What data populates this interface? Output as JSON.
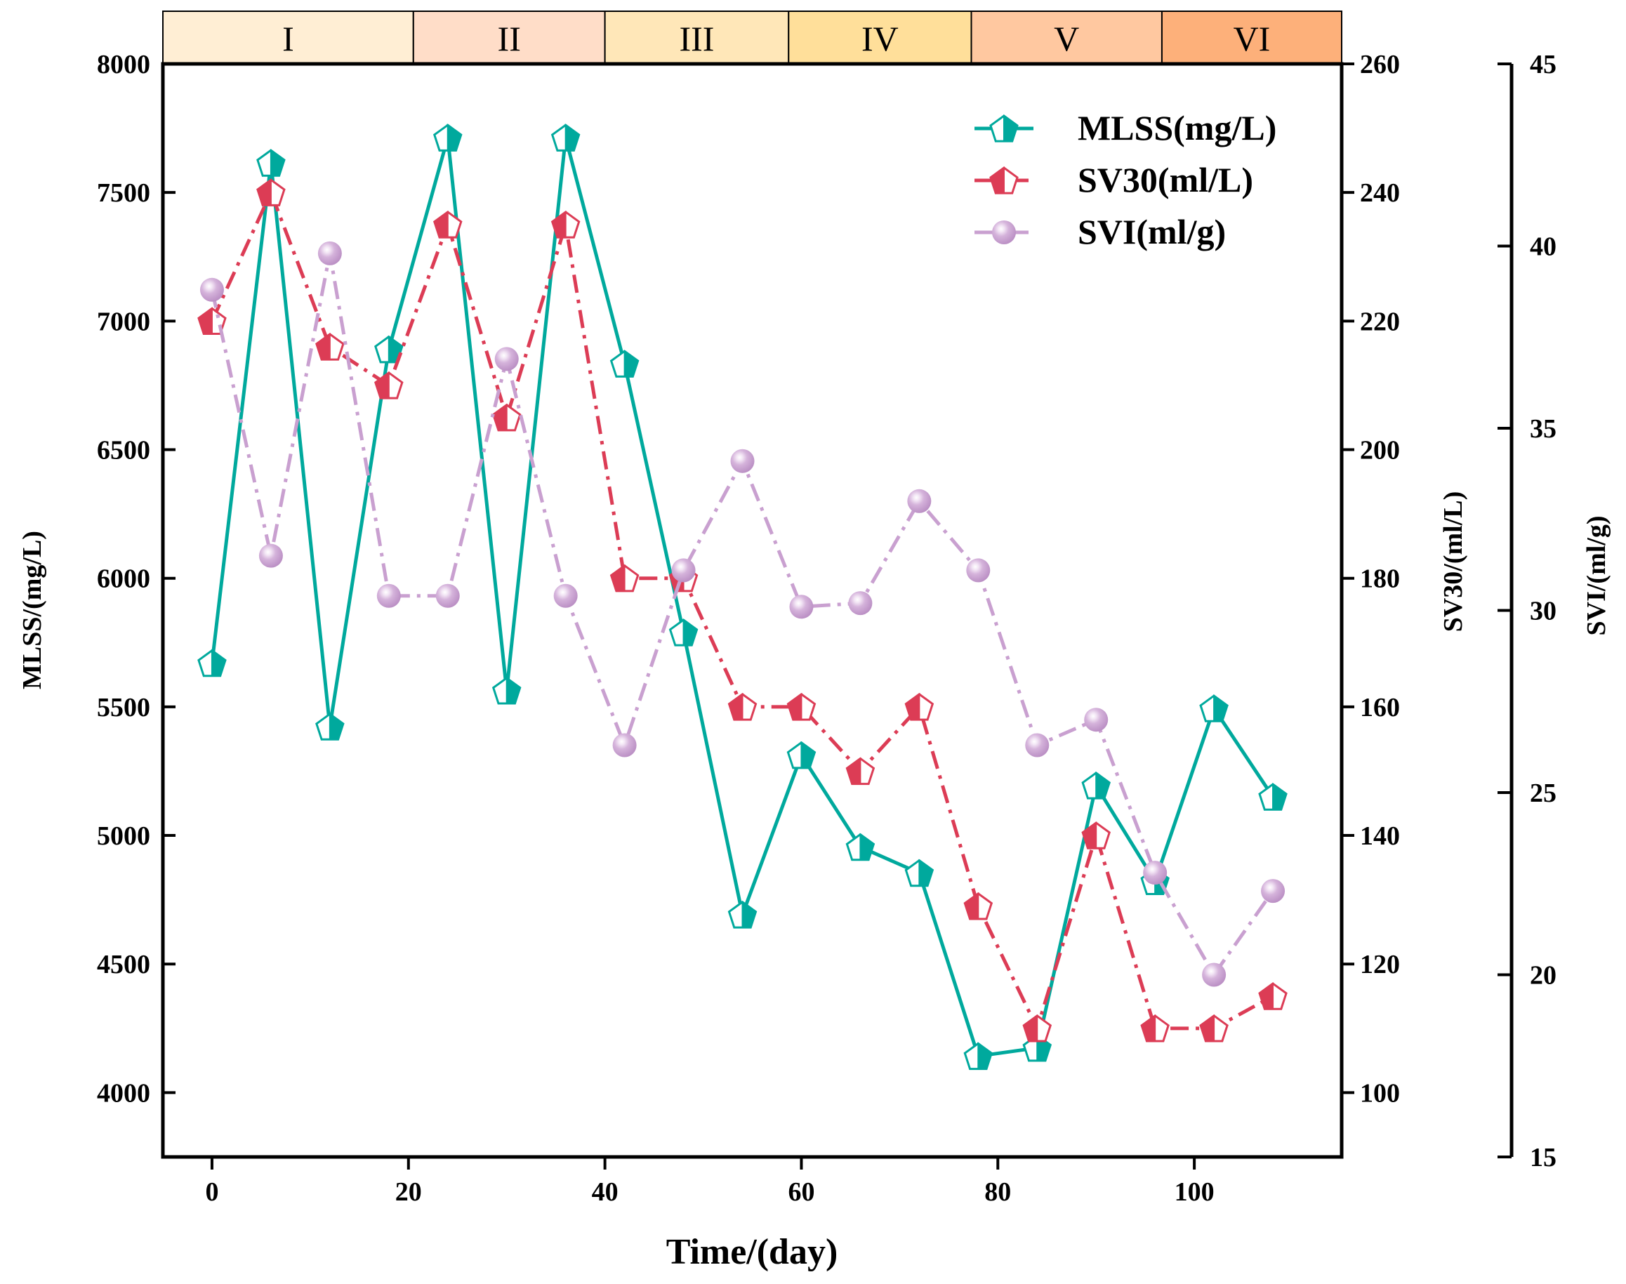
{
  "chart_data": {
    "type": "line",
    "xlabel": "Time/(day)",
    "xlim": [
      -5,
      115
    ],
    "xticks": [
      0,
      20,
      40,
      60,
      80,
      100
    ],
    "x": [
      0,
      6,
      12,
      18,
      24,
      30,
      36,
      42,
      48,
      54,
      60,
      66,
      72,
      78,
      84,
      90,
      96,
      102,
      108
    ],
    "phases": [
      {
        "label": "I",
        "start": -5,
        "end": 20.5,
        "color": "#FFEED4"
      },
      {
        "label": "II",
        "start": 20.5,
        "end": 40,
        "color": "#FFDDC8"
      },
      {
        "label": "III",
        "start": 40,
        "end": 58.7,
        "color": "#FFE7B8"
      },
      {
        "label": "IV",
        "start": 58.7,
        "end": 77.3,
        "color": "#FFDF9A"
      },
      {
        "label": "V",
        "start": 77.3,
        "end": 96.7,
        "color": "#FFC8A0"
      },
      {
        "label": "VI",
        "start": 96.7,
        "end": 115,
        "color": "#FDB07A"
      }
    ],
    "axes": [
      {
        "id": "left",
        "label": "MLSS/(mg/L)",
        "ylim": [
          3750,
          8000
        ],
        "ticks": [
          4000,
          4500,
          5000,
          5500,
          6000,
          6500,
          7000,
          7500,
          8000
        ]
      },
      {
        "id": "right1",
        "label": "SV30/(ml/L)",
        "ylim": [
          90,
          260
        ],
        "ticks": [
          100,
          120,
          140,
          160,
          180,
          200,
          220,
          240,
          260
        ]
      },
      {
        "id": "right2",
        "label": "SVI/(ml/g)",
        "ylim": [
          15,
          45
        ],
        "ticks": [
          15,
          20,
          25,
          30,
          35,
          40,
          45
        ]
      }
    ],
    "series": [
      {
        "name": "MLSS(mg/L)",
        "axis": "left",
        "color": "#00A99D",
        "style": "solid",
        "marker": "pentagon-right-half",
        "values": [
          5670,
          7615,
          5423,
          6890,
          7713,
          5563,
          7713,
          6834,
          5789,
          4692,
          5312,
          4955,
          4854,
          4142,
          4174,
          5194,
          4822,
          5494,
          5150
        ]
      },
      {
        "name": "SV30(ml/L)",
        "axis": "right1",
        "color": "#DC3C55",
        "style": "dashdot",
        "marker": "pentagon-left-half",
        "values": [
          220,
          240,
          216,
          210,
          235,
          205,
          235,
          180,
          180,
          160,
          160,
          150,
          160,
          129,
          110,
          140,
          110,
          110,
          115
        ]
      },
      {
        "name": "SVI(ml/g)",
        "axis": "right2",
        "color": "#C9A0D0",
        "style": "dashdot",
        "marker": "sphere",
        "values": [
          38.8,
          31.5,
          39.8,
          30.4,
          30.4,
          36.9,
          30.4,
          26.3,
          31.1,
          34.1,
          30.1,
          30.2,
          33.0,
          31.1,
          26.3,
          27.0,
          22.8,
          20.0,
          22.3
        ]
      }
    ],
    "legend": "top-right",
    "grid": false
  }
}
